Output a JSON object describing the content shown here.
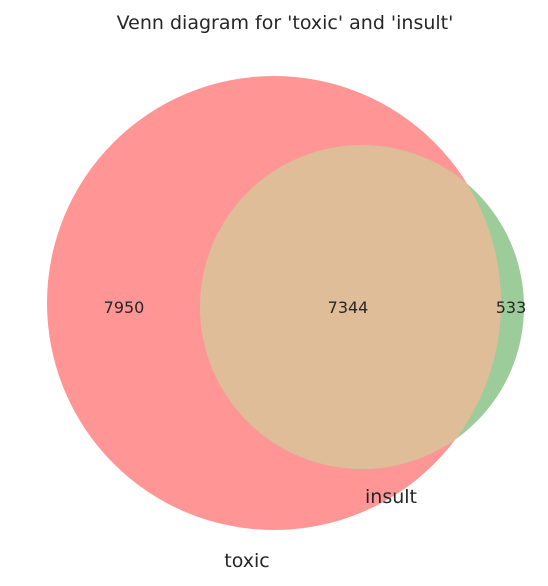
{
  "title": "Venn diagram for 'toxic' and 'insult'",
  "chart_data": {
    "type": "venn",
    "title": "Venn diagram for 'toxic' and 'insult'",
    "sets": [
      {
        "name": "toxic",
        "color": "#ff9595"
      },
      {
        "name": "insult",
        "color": "#9dcc9b"
      }
    ],
    "regions": {
      "toxic_only": 7950,
      "both": 7344,
      "insult_only": 533
    },
    "overlap_color": "#dfbd98"
  }
}
